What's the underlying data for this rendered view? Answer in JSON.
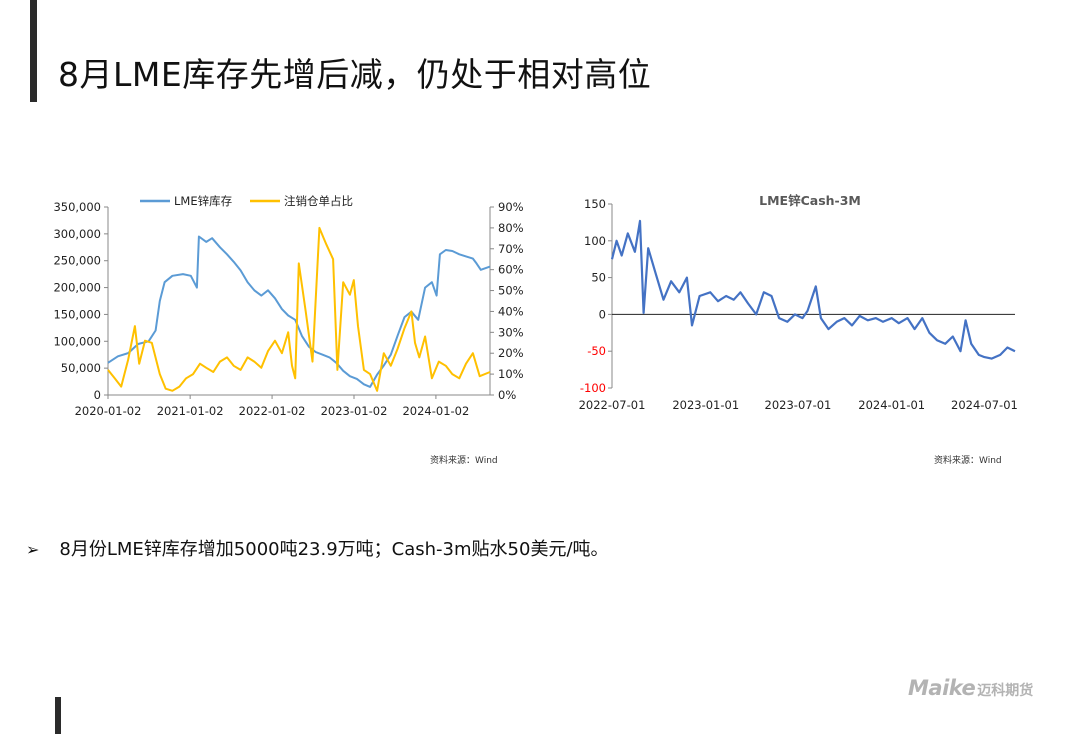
{
  "title": "8月LME库存先增后减，仍处于相对高位",
  "bullet": "8月份LME锌库存增加5000吨23.9万吨；Cash-3m贴水50美元/吨。",
  "bullet_arrow": "➢",
  "logo": {
    "main": "Maike",
    "cn": "迈科期货"
  },
  "colors": {
    "inventory": "#5b9bd5",
    "ratio": "#ffc000",
    "spread": "#4472c4",
    "negative_tick": "#ff0000"
  },
  "chart_data": [
    {
      "type": "line",
      "title": "",
      "legend_position": "top",
      "x_range": [
        "2020-01-02",
        "2024-08-30"
      ],
      "x_ticks": [
        "2020-01-02",
        "2021-01-02",
        "2022-01-02",
        "2023-01-02",
        "2024-01-02"
      ],
      "y_left": {
        "range": [
          0,
          350000
        ],
        "ticks": [
          "0",
          "50,000",
          "100,000",
          "150,000",
          "200,000",
          "250,000",
          "300,000",
          "350,000"
        ]
      },
      "y_right": {
        "range": [
          0,
          90
        ],
        "ticks": [
          "0%",
          "10%",
          "20%",
          "30%",
          "40%",
          "50%",
          "60%",
          "70%",
          "80%",
          "90%"
        ]
      },
      "source": "资料来源：Wind",
      "series": [
        {
          "name": "LME锌库存",
          "axis": "left",
          "points": [
            [
              "2020-01-02",
              60000
            ],
            [
              "2020-02-15",
              72000
            ],
            [
              "2020-04-01",
              78000
            ],
            [
              "2020-05-15",
              95000
            ],
            [
              "2020-07-01",
              100000
            ],
            [
              "2020-08-01",
              120000
            ],
            [
              "2020-08-20",
              175000
            ],
            [
              "2020-09-10",
              210000
            ],
            [
              "2020-10-15",
              222000
            ],
            [
              "2020-12-01",
              225000
            ],
            [
              "2021-01-05",
              222000
            ],
            [
              "2021-02-01",
              200000
            ],
            [
              "2021-02-10",
              295000
            ],
            [
              "2021-03-15",
              285000
            ],
            [
              "2021-04-10",
              292000
            ],
            [
              "2021-05-15",
              275000
            ],
            [
              "2021-06-15",
              262000
            ],
            [
              "2021-07-15",
              248000
            ],
            [
              "2021-08-15",
              232000
            ],
            [
              "2021-09-15",
              210000
            ],
            [
              "2021-10-15",
              195000
            ],
            [
              "2021-11-15",
              185000
            ],
            [
              "2021-12-15",
              195000
            ],
            [
              "2022-01-15",
              180000
            ],
            [
              "2022-02-15",
              160000
            ],
            [
              "2022-03-15",
              148000
            ],
            [
              "2022-04-15",
              140000
            ],
            [
              "2022-05-15",
              110000
            ],
            [
              "2022-06-15",
              90000
            ],
            [
              "2022-07-15",
              80000
            ],
            [
              "2022-08-15",
              75000
            ],
            [
              "2022-09-15",
              70000
            ],
            [
              "2022-10-15",
              60000
            ],
            [
              "2022-11-15",
              45000
            ],
            [
              "2022-12-15",
              35000
            ],
            [
              "2023-01-15",
              30000
            ],
            [
              "2023-02-15",
              20000
            ],
            [
              "2023-03-15",
              15000
            ],
            [
              "2023-04-15",
              38000
            ],
            [
              "2023-05-15",
              55000
            ],
            [
              "2023-06-15",
              75000
            ],
            [
              "2023-07-15",
              110000
            ],
            [
              "2023-08-15",
              145000
            ],
            [
              "2023-09-15",
              155000
            ],
            [
              "2023-10-15",
              140000
            ],
            [
              "2023-11-15",
              200000
            ],
            [
              "2023-12-15",
              210000
            ],
            [
              "2024-01-05",
              185000
            ],
            [
              "2024-01-20",
              262000
            ],
            [
              "2024-02-15",
              270000
            ],
            [
              "2024-03-15",
              268000
            ],
            [
              "2024-04-15",
              262000
            ],
            [
              "2024-05-15",
              258000
            ],
            [
              "2024-06-15",
              254000
            ],
            [
              "2024-07-01",
              245000
            ],
            [
              "2024-07-20",
              233000
            ],
            [
              "2024-08-30",
              239000
            ]
          ]
        },
        {
          "name": "注销仓单占比",
          "axis": "right",
          "points": [
            [
              "2020-01-02",
              12
            ],
            [
              "2020-02-01",
              8
            ],
            [
              "2020-03-01",
              4
            ],
            [
              "2020-04-01",
              17
            ],
            [
              "2020-05-01",
              33
            ],
            [
              "2020-05-20",
              15
            ],
            [
              "2020-06-15",
              26
            ],
            [
              "2020-07-15",
              25
            ],
            [
              "2020-08-20",
              10
            ],
            [
              "2020-09-15",
              3
            ],
            [
              "2020-10-15",
              2
            ],
            [
              "2020-11-15",
              4
            ],
            [
              "2020-12-15",
              8
            ],
            [
              "2021-01-15",
              10
            ],
            [
              "2021-02-15",
              15
            ],
            [
              "2021-03-15",
              13
            ],
            [
              "2021-04-15",
              11
            ],
            [
              "2021-05-15",
              16
            ],
            [
              "2021-06-15",
              18
            ],
            [
              "2021-07-15",
              14
            ],
            [
              "2021-08-15",
              12
            ],
            [
              "2021-09-15",
              18
            ],
            [
              "2021-10-15",
              16
            ],
            [
              "2021-11-15",
              13
            ],
            [
              "2021-12-15",
              21
            ],
            [
              "2022-01-15",
              26
            ],
            [
              "2022-02-15",
              20
            ],
            [
              "2022-03-15",
              30
            ],
            [
              "2022-04-01",
              14
            ],
            [
              "2022-04-15",
              8
            ],
            [
              "2022-05-01",
              63
            ],
            [
              "2022-06-01",
              40
            ],
            [
              "2022-07-01",
              16
            ],
            [
              "2022-08-01",
              80
            ],
            [
              "2022-08-20",
              75
            ],
            [
              "2022-09-01",
              72
            ],
            [
              "2022-10-01",
              65
            ],
            [
              "2022-10-20",
              12
            ],
            [
              "2022-11-15",
              54
            ],
            [
              "2022-12-15",
              48
            ],
            [
              "2023-01-01",
              55
            ],
            [
              "2023-01-20",
              33
            ],
            [
              "2023-02-15",
              12
            ],
            [
              "2023-03-15",
              10
            ],
            [
              "2023-04-15",
              2
            ],
            [
              "2023-05-15",
              20
            ],
            [
              "2023-06-15",
              14
            ],
            [
              "2023-07-15",
              22
            ],
            [
              "2023-08-15",
              32
            ],
            [
              "2023-09-15",
              40
            ],
            [
              "2023-10-01",
              25
            ],
            [
              "2023-10-20",
              18
            ],
            [
              "2023-11-15",
              28
            ],
            [
              "2023-12-15",
              8
            ],
            [
              "2024-01-15",
              16
            ],
            [
              "2024-02-15",
              14
            ],
            [
              "2024-03-15",
              10
            ],
            [
              "2024-04-15",
              8
            ],
            [
              "2024-05-15",
              15
            ],
            [
              "2024-06-15",
              20
            ],
            [
              "2024-07-15",
              9
            ],
            [
              "2024-08-30",
              11
            ]
          ]
        }
      ]
    },
    {
      "type": "line",
      "title": "LME锌Cash-3M",
      "x_range": [
        "2022-07-01",
        "2024-08-30"
      ],
      "x_ticks": [
        "2022-07-01",
        "2023-01-01",
        "2023-07-01",
        "2024-01-01",
        "2024-07-01"
      ],
      "y": {
        "range": [
          -100,
          150
        ],
        "ticks": [
          "150",
          "100",
          "50",
          "0",
          "-50",
          "-100"
        ]
      },
      "source": "资料来源：Wind",
      "series": [
        {
          "name": "",
          "points": [
            [
              "2022-07-01",
              75
            ],
            [
              "2022-07-10",
              100
            ],
            [
              "2022-07-20",
              80
            ],
            [
              "2022-08-01",
              110
            ],
            [
              "2022-08-15",
              85
            ],
            [
              "2022-08-25",
              127
            ],
            [
              "2022-09-01",
              2
            ],
            [
              "2022-09-10",
              90
            ],
            [
              "2022-09-25",
              55
            ],
            [
              "2022-10-10",
              20
            ],
            [
              "2022-10-25",
              45
            ],
            [
              "2022-11-10",
              30
            ],
            [
              "2022-11-25",
              50
            ],
            [
              "2022-12-05",
              -15
            ],
            [
              "2022-12-20",
              25
            ],
            [
              "2023-01-10",
              30
            ],
            [
              "2023-01-25",
              18
            ],
            [
              "2023-02-10",
              25
            ],
            [
              "2023-02-25",
              20
            ],
            [
              "2023-03-10",
              30
            ],
            [
              "2023-03-25",
              15
            ],
            [
              "2023-04-10",
              0
            ],
            [
              "2023-04-25",
              30
            ],
            [
              "2023-05-10",
              25
            ],
            [
              "2023-05-25",
              -5
            ],
            [
              "2023-06-10",
              -10
            ],
            [
              "2023-06-25",
              0
            ],
            [
              "2023-07-10",
              -5
            ],
            [
              "2023-07-20",
              5
            ],
            [
              "2023-08-05",
              38
            ],
            [
              "2023-08-15",
              -5
            ],
            [
              "2023-08-30",
              -20
            ],
            [
              "2023-09-15",
              -10
            ],
            [
              "2023-09-30",
              -5
            ],
            [
              "2023-10-15",
              -15
            ],
            [
              "2023-10-30",
              -2
            ],
            [
              "2023-11-15",
              -8
            ],
            [
              "2023-12-01",
              -5
            ],
            [
              "2023-12-15",
              -10
            ],
            [
              "2024-01-01",
              -5
            ],
            [
              "2024-01-15",
              -12
            ],
            [
              "2024-02-01",
              -5
            ],
            [
              "2024-02-15",
              -20
            ],
            [
              "2024-03-01",
              -5
            ],
            [
              "2024-03-15",
              -25
            ],
            [
              "2024-03-30",
              -35
            ],
            [
              "2024-04-15",
              -40
            ],
            [
              "2024-04-30",
              -30
            ],
            [
              "2024-05-15",
              -50
            ],
            [
              "2024-05-25",
              -8
            ],
            [
              "2024-06-05",
              -40
            ],
            [
              "2024-06-20",
              -55
            ],
            [
              "2024-07-01",
              -58
            ],
            [
              "2024-07-15",
              -60
            ],
            [
              "2024-08-01",
              -55
            ],
            [
              "2024-08-15",
              -45
            ],
            [
              "2024-08-30",
              -50
            ]
          ]
        }
      ]
    }
  ]
}
